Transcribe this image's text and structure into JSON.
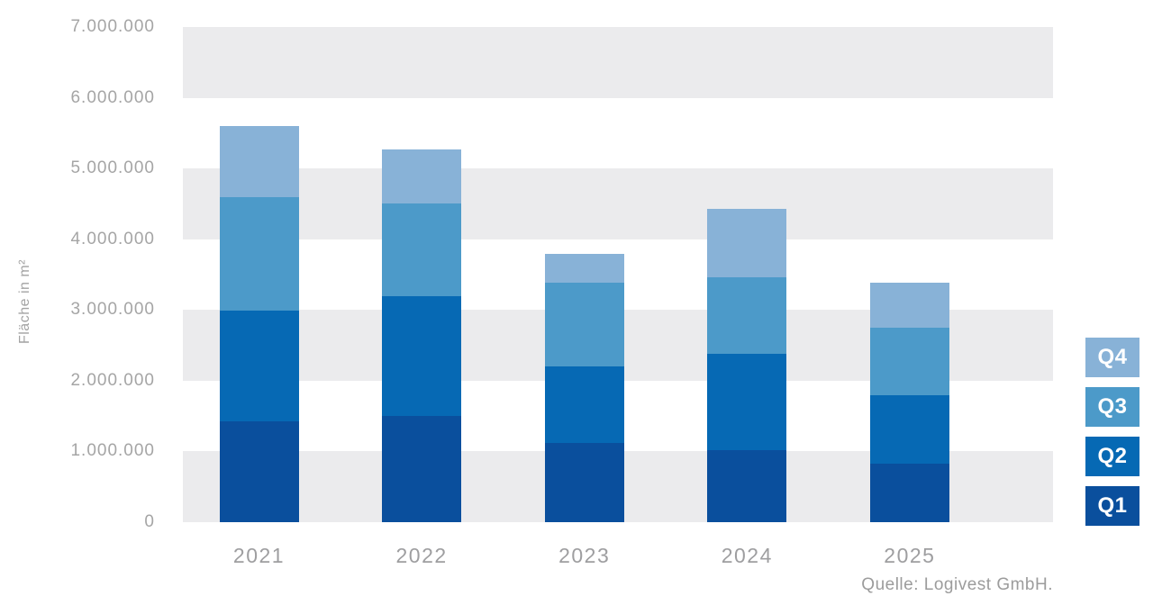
{
  "chart_data": {
    "type": "bar",
    "stacked": true,
    "title": "",
    "ylabel": "Fläche in m²",
    "xlabel": "",
    "ylim": [
      0,
      7000000
    ],
    "ytick_step": 1000000,
    "ytick_labels": [
      "7.000.000",
      "6.000.000",
      "5.000.000",
      "4.000.000",
      "3.000.000",
      "2.000.000",
      "1.000.000",
      "0"
    ],
    "categories": [
      "2021",
      "2022",
      "2023",
      "2024",
      "2025"
    ],
    "series": [
      {
        "name": "Q1",
        "color": "#0a4f9d",
        "values": [
          1420000,
          1500000,
          1120000,
          1020000,
          830000
        ]
      },
      {
        "name": "Q2",
        "color": "#0669b4",
        "values": [
          1570000,
          1690000,
          1080000,
          1360000,
          960000
        ]
      },
      {
        "name": "Q3",
        "color": "#4c9ac9",
        "values": [
          1600000,
          1310000,
          1190000,
          1080000,
          960000
        ]
      },
      {
        "name": "Q4",
        "color": "#88b2d7",
        "values": [
          1010000,
          770000,
          400000,
          970000,
          640000
        ]
      }
    ],
    "totals": [
      5600000,
      5270000,
      3790000,
      4430000,
      3390000
    ],
    "legend": {
      "position": "right",
      "items": [
        {
          "label": "Q4",
          "color": "#88b2d7"
        },
        {
          "label": "Q3",
          "color": "#4c9ac9"
        },
        {
          "label": "Q2",
          "color": "#0669b4"
        },
        {
          "label": "Q1",
          "color": "#0a4f9d"
        }
      ]
    },
    "grid": {
      "bands": true,
      "band_color": "#ebebed",
      "background": "#ffffff"
    },
    "source": "Quelle: Logivest GmbH."
  }
}
